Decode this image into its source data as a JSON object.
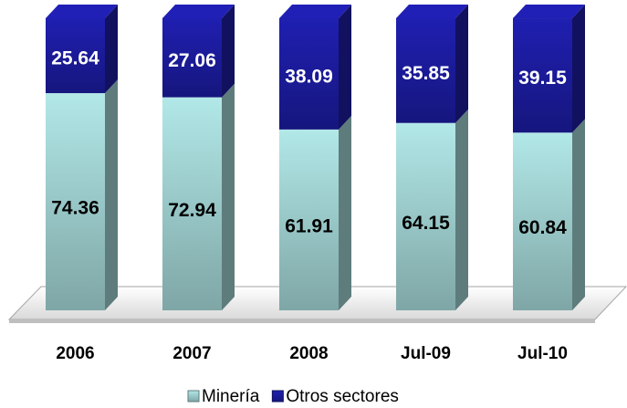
{
  "chart_data": {
    "type": "stacked-bar-3d",
    "categories": [
      "2006",
      "2007",
      "2008",
      "Jul-09",
      "Jul-10"
    ],
    "series": [
      {
        "name": "Minería",
        "color": "#9fcfcf",
        "label_color": "#000000",
        "values": [
          74.36,
          72.94,
          61.91,
          64.15,
          60.84
        ]
      },
      {
        "name": "Otros sectores",
        "color": "#1c1c9e",
        "label_color": "#ffffff",
        "values": [
          25.64,
          27.06,
          38.09,
          35.85,
          39.15
        ]
      }
    ],
    "legend": "bottom"
  }
}
